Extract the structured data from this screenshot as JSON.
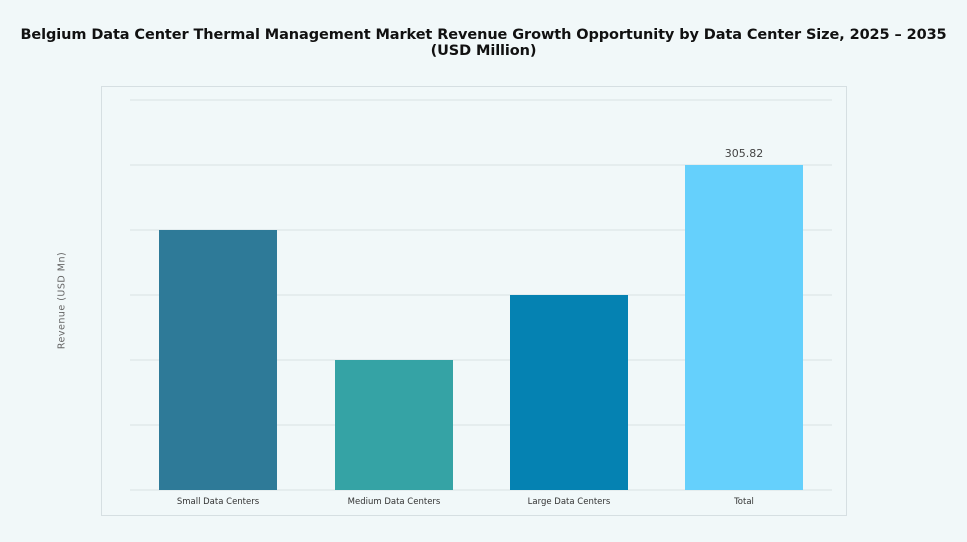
{
  "chart_data": {
    "type": "bar",
    "title": "Belgium Data Center Thermal Management Market Revenue Growth Opportunity by Data Center Size, 2025 – 2035 (USD Million)",
    "xlabel": "",
    "ylabel": "Revenue (USD Mn)",
    "categories": [
      "Small Data Centers",
      "Medium Data Centers",
      "Large Data Centers",
      "Total"
    ],
    "values": [
      244.66,
      122.33,
      183.49,
      305.82
    ],
    "data_labels": [
      "",
      "",
      "",
      "305.82"
    ],
    "colors": [
      "#2e7a98",
      "#35a3a5",
      "#0582b2",
      "#65d0fc"
    ],
    "ylim": [
      0,
      366.98
    ],
    "grid": true,
    "legend": "none"
  }
}
